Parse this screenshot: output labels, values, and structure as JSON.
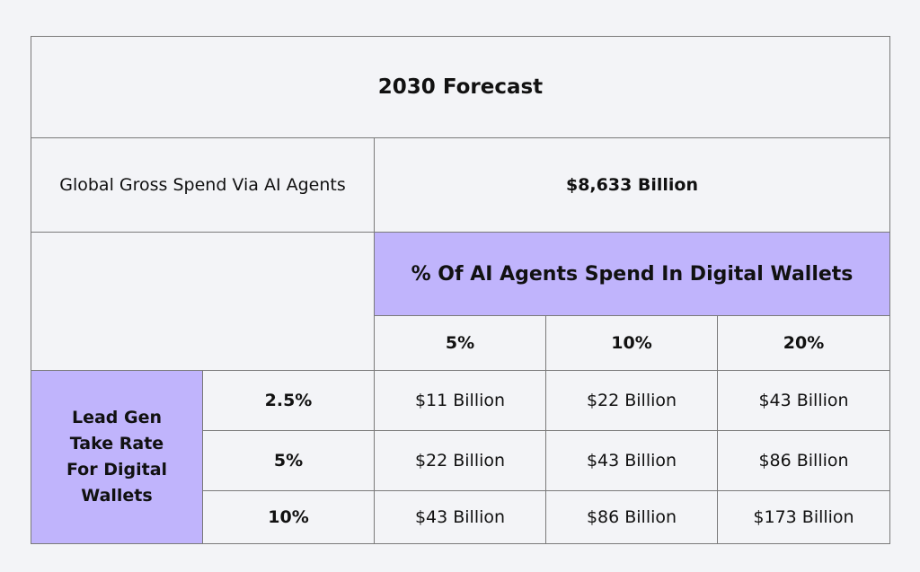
{
  "title": "2030 Forecast",
  "gross_spend": {
    "label": "Global Gross Spend Via AI Agents",
    "value": "$8,633 Billion"
  },
  "column_header": "% Of AI Agents Spend In Digital Wallets",
  "columns": [
    "5%",
    "10%",
    "20%"
  ],
  "row_header": "Lead Gen Take Rate For Digital Wallets",
  "rows": [
    {
      "label": "2.5%",
      "values": [
        "$11 Billion",
        "$22 Billion",
        "$43 Billion"
      ]
    },
    {
      "label": "5%",
      "values": [
        "$22 Billion",
        "$43 Billion",
        "$86 Billion"
      ]
    },
    {
      "label": "10%",
      "values": [
        "$43 Billion",
        "$86 Billion",
        "$173 Billion"
      ]
    }
  ],
  "colors": {
    "accent": "#c0b4fc",
    "background": "#f3f4f7",
    "border": "#7a7a7a"
  }
}
